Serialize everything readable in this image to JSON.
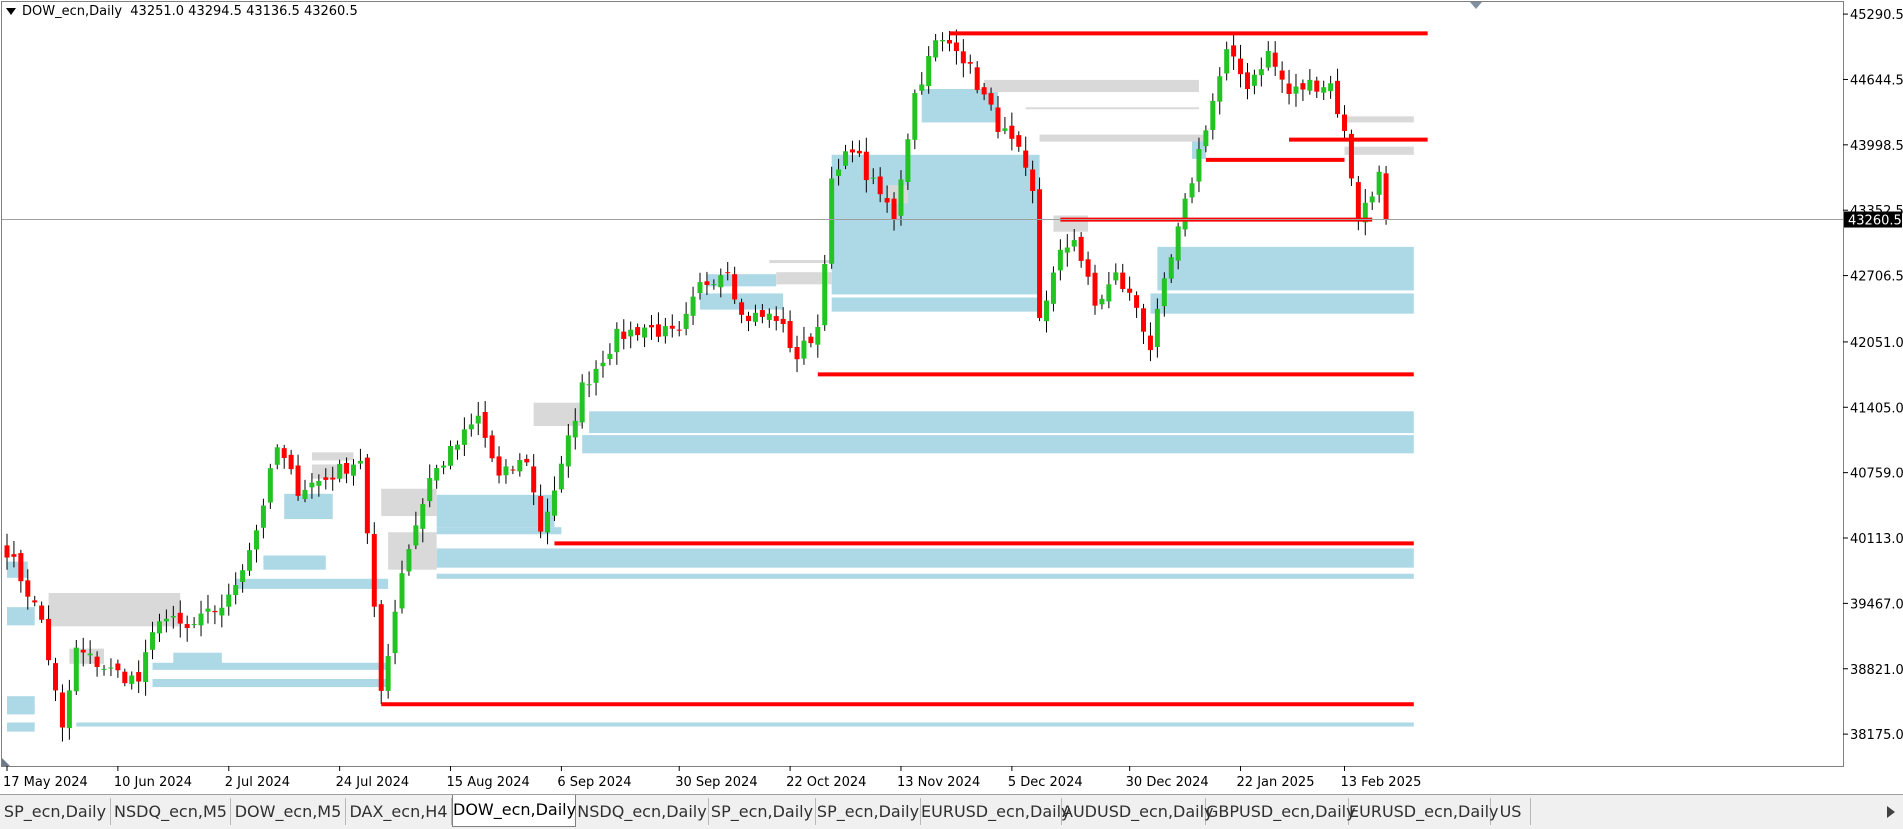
{
  "chart_info": {
    "symbol_timeframe": "DOW_ecn,Daily",
    "ohlc": "43251.0 43294.5 43136.5 43260.5"
  },
  "tabs": [
    {
      "label": "SP_ecn,Daily",
      "active": false
    },
    {
      "label": "NSDQ_ecn,M5",
      "active": false
    },
    {
      "label": "DOW_ecn,M5",
      "active": false
    },
    {
      "label": "DAX_ecn,H4",
      "active": false
    },
    {
      "label": "DOW_ecn,Daily",
      "active": true
    },
    {
      "label": "NSDQ_ecn,Daily",
      "active": false
    },
    {
      "label": "SP_ecn,Daily",
      "active": false
    },
    {
      "label": "SP_ecn,Daily",
      "active": false
    },
    {
      "label": "EURUSD_ecn,Daily",
      "active": false
    },
    {
      "label": "AUDUSD_ecn,Daily",
      "active": false
    },
    {
      "label": "GBPUSD_ecn,Daily",
      "active": false
    },
    {
      "label": "EURUSD_ecn,Daily",
      "active": false
    },
    {
      "label": "US",
      "active": false
    }
  ],
  "colors": {
    "bull": "#22c322",
    "bear": "#ff0000",
    "wick": "#000000",
    "zone_blue": "#add8e6",
    "zone_gray": "#d9d9d9",
    "level_red": "#ff0000",
    "price_line": "#a0a0a0",
    "price_tag_bg": "#000000",
    "price_tag_text": "#ffffff"
  },
  "chart_data": {
    "type": "candlestick",
    "y_ticks": [
      "45290.5",
      "44644.5",
      "43998.5",
      "43352.5",
      "42706.5",
      "42051.0",
      "41405.0",
      "40759.0",
      "40113.0",
      "39467.0",
      "38821.0",
      "38175.0"
    ],
    "ylim": [
      37860,
      45410
    ],
    "current_price": "43260.5",
    "x_labels": [
      "17 May 2024",
      "10 Jun 2024",
      "2 Jul 2024",
      "24 Jul 2024",
      "15 Aug 2024",
      "6 Sep 2024",
      "30 Sep 2024",
      "22 Oct 2024",
      "13 Nov 2024",
      "5 Dec 2024",
      "30 Dec 2024",
      "22 Jan 2025",
      "13 Feb 2025"
    ],
    "label_bar_index": [
      0,
      16,
      32,
      48,
      64,
      80,
      97,
      113,
      129,
      145,
      162,
      178,
      193
    ],
    "bar_count": 200,
    "anchors": [
      [
        0,
        40000
      ],
      [
        5,
        39300
      ],
      [
        8,
        38200
      ],
      [
        10,
        39000
      ],
      [
        15,
        38800
      ],
      [
        19,
        38700
      ],
      [
        22,
        39350
      ],
      [
        26,
        39200
      ],
      [
        32,
        39500
      ],
      [
        36,
        40200
      ],
      [
        39,
        41000
      ],
      [
        42,
        40600
      ],
      [
        46,
        40700
      ],
      [
        51,
        40900
      ],
      [
        54,
        38600
      ],
      [
        57,
        39800
      ],
      [
        61,
        40700
      ],
      [
        68,
        41300
      ],
      [
        71,
        40700
      ],
      [
        75,
        40900
      ],
      [
        77,
        40200
      ],
      [
        80,
        40800
      ],
      [
        83,
        41600
      ],
      [
        88,
        42100
      ],
      [
        92,
        42200
      ],
      [
        97,
        42100
      ],
      [
        100,
        42600
      ],
      [
        104,
        42800
      ],
      [
        106,
        42300
      ],
      [
        111,
        42300
      ],
      [
        114,
        41900
      ],
      [
        117,
        42200
      ],
      [
        119,
        43600
      ],
      [
        122,
        44000
      ],
      [
        124,
        43700
      ],
      [
        126,
        43500
      ],
      [
        128,
        43300
      ],
      [
        131,
        44500
      ],
      [
        134,
        45000
      ],
      [
        137,
        45000
      ],
      [
        140,
        44600
      ],
      [
        143,
        44200
      ],
      [
        146,
        43900
      ],
      [
        148,
        43500
      ],
      [
        149,
        42300
      ],
      [
        152,
        42900
      ],
      [
        154,
        43100
      ],
      [
        157,
        42400
      ],
      [
        160,
        42700
      ],
      [
        163,
        42400
      ],
      [
        165,
        42000
      ],
      [
        167,
        42600
      ],
      [
        170,
        43400
      ],
      [
        173,
        44200
      ],
      [
        176,
        44900
      ],
      [
        179,
        44600
      ],
      [
        182,
        44900
      ],
      [
        185,
        44500
      ],
      [
        188,
        44600
      ],
      [
        191,
        44600
      ],
      [
        193,
        44100
      ],
      [
        195,
        43300
      ],
      [
        197,
        43500
      ],
      [
        198,
        43800
      ],
      [
        199,
        43260
      ]
    ],
    "zones": [
      {
        "color": "blue",
        "from_bar": 84,
        "to_bar": 203,
        "y_top": 41365,
        "y_bottom": 41150
      },
      {
        "color": "blue",
        "from_bar": 83,
        "to_bar": 203,
        "y_top": 41130,
        "y_bottom": 40950
      },
      {
        "color": "blue",
        "from_bar": 62,
        "to_bar": 203,
        "y_top": 40010,
        "y_bottom": 39820
      },
      {
        "color": "blue",
        "from_bar": 62,
        "to_bar": 203,
        "y_top": 39760,
        "y_bottom": 39710
      },
      {
        "color": "blue",
        "from_bar": 10,
        "to_bar": 203,
        "y_top": 38290,
        "y_bottom": 38250
      },
      {
        "color": "blue",
        "from_bar": 0,
        "to_bar": 4,
        "y_top": 38550,
        "y_bottom": 38370
      },
      {
        "color": "blue",
        "from_bar": 0,
        "to_bar": 4,
        "y_top": 38290,
        "y_bottom": 38200
      },
      {
        "color": "blue",
        "from_bar": 0,
        "to_bar": 4,
        "y_top": 39430,
        "y_bottom": 39250
      },
      {
        "color": "blue",
        "from_bar": 0,
        "to_bar": 3,
        "y_top": 39880,
        "y_bottom": 39720
      },
      {
        "color": "blue",
        "from_bar": 21,
        "to_bar": 55,
        "y_top": 38880,
        "y_bottom": 38810
      },
      {
        "color": "blue",
        "from_bar": 21,
        "to_bar": 55,
        "y_top": 38720,
        "y_bottom": 38640
      },
      {
        "color": "blue",
        "from_bar": 24,
        "to_bar": 31,
        "y_top": 38980,
        "y_bottom": 38840
      },
      {
        "color": "blue",
        "from_bar": 33,
        "to_bar": 55,
        "y_top": 39710,
        "y_bottom": 39610
      },
      {
        "color": "blue",
        "from_bar": 37,
        "to_bar": 46,
        "y_top": 39940,
        "y_bottom": 39800
      },
      {
        "color": "blue",
        "from_bar": 40,
        "to_bar": 47,
        "y_top": 40550,
        "y_bottom": 40300
      },
      {
        "color": "blue",
        "from_bar": 62,
        "to_bar": 79,
        "y_top": 40540,
        "y_bottom": 40220
      },
      {
        "color": "blue",
        "from_bar": 62,
        "to_bar": 80,
        "y_top": 40220,
        "y_bottom": 40150
      },
      {
        "color": "blue",
        "from_bar": 101,
        "to_bar": 111,
        "y_top": 42720,
        "y_bottom": 42600
      },
      {
        "color": "blue",
        "from_bar": 100,
        "to_bar": 112,
        "y_top": 42530,
        "y_bottom": 42370
      },
      {
        "color": "blue",
        "from_bar": 119,
        "to_bar": 149,
        "y_top": 43900,
        "y_bottom": 42520
      },
      {
        "color": "blue",
        "from_bar": 119,
        "to_bar": 149,
        "y_top": 42490,
        "y_bottom": 42350
      },
      {
        "color": "blue",
        "from_bar": 130,
        "to_bar": 147,
        "y_top": 43790,
        "y_bottom": 43560
      },
      {
        "color": "blue",
        "from_bar": 132,
        "to_bar": 143,
        "y_top": 44550,
        "y_bottom": 44220
      },
      {
        "color": "blue",
        "from_bar": 166,
        "to_bar": 203,
        "y_top": 42990,
        "y_bottom": 42560
      },
      {
        "color": "blue",
        "from_bar": 165,
        "to_bar": 203,
        "y_top": 42530,
        "y_bottom": 42330
      },
      {
        "color": "blue",
        "from_bar": 171,
        "to_bar": 173,
        "y_top": 44060,
        "y_bottom": 43860
      },
      {
        "color": "gray",
        "from_bar": 6,
        "to_bar": 25,
        "y_top": 39570,
        "y_bottom": 39240
      },
      {
        "color": "gray",
        "from_bar": 9,
        "to_bar": 14,
        "y_top": 39020,
        "y_bottom": 38870
      },
      {
        "color": "gray",
        "from_bar": 44,
        "to_bar": 50,
        "y_top": 40960,
        "y_bottom": 40880
      },
      {
        "color": "gray",
        "from_bar": 44,
        "to_bar": 49,
        "y_top": 40840,
        "y_bottom": 40700
      },
      {
        "color": "gray",
        "from_bar": 54,
        "to_bar": 62,
        "y_top": 40600,
        "y_bottom": 40330
      },
      {
        "color": "gray",
        "from_bar": 55,
        "to_bar": 62,
        "y_top": 40170,
        "y_bottom": 39800
      },
      {
        "color": "gray",
        "from_bar": 76,
        "to_bar": 83,
        "y_top": 41450,
        "y_bottom": 41220
      },
      {
        "color": "gray",
        "from_bar": 110,
        "to_bar": 119,
        "y_top": 42860,
        "y_bottom": 42830
      },
      {
        "color": "gray",
        "from_bar": 111,
        "to_bar": 119,
        "y_top": 42740,
        "y_bottom": 42620
      },
      {
        "color": "gray",
        "from_bar": 127,
        "to_bar": 130,
        "y_top": 43600,
        "y_bottom": 43420
      },
      {
        "color": "gray",
        "from_bar": 141,
        "to_bar": 172,
        "y_top": 44640,
        "y_bottom": 44520
      },
      {
        "color": "gray",
        "from_bar": 147,
        "to_bar": 172,
        "y_top": 44370,
        "y_bottom": 44350
      },
      {
        "color": "gray",
        "from_bar": 149,
        "to_bar": 173,
        "y_top": 44100,
        "y_bottom": 44030
      },
      {
        "color": "gray",
        "from_bar": 151,
        "to_bar": 156,
        "y_top": 43300,
        "y_bottom": 43140
      },
      {
        "color": "gray",
        "from_bar": 193,
        "to_bar": 203,
        "y_top": 44280,
        "y_bottom": 44220
      },
      {
        "color": "gray",
        "from_bar": 193,
        "to_bar": 203,
        "y_top": 43980,
        "y_bottom": 43900
      }
    ],
    "levels": [
      {
        "from_bar": 136,
        "to_bar": 205,
        "y": 45100
      },
      {
        "from_bar": 185,
        "to_bar": 205,
        "y": 44050
      },
      {
        "from_bar": 173,
        "to_bar": 193,
        "y": 43850
      },
      {
        "from_bar": 152,
        "to_bar": 197,
        "y": 43260
      },
      {
        "from_bar": 117,
        "to_bar": 203,
        "y": 41730
      },
      {
        "from_bar": 79,
        "to_bar": 203,
        "y": 40060
      },
      {
        "from_bar": 54,
        "to_bar": 203,
        "y": 38470
      }
    ]
  }
}
